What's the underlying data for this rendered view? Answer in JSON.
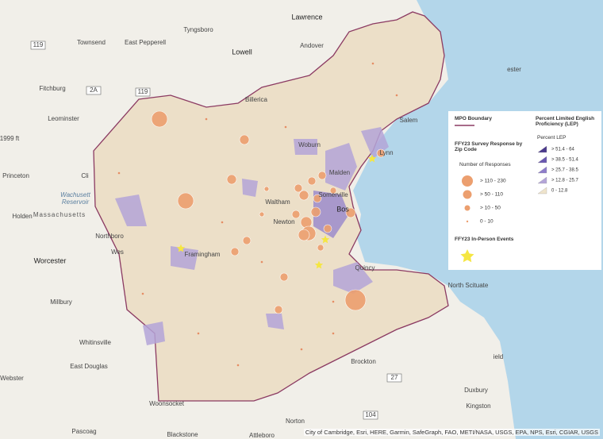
{
  "map": {
    "places": [
      "Lawrence",
      "Townsend",
      "East Pepperell",
      "Tyngsboro",
      "Lowell",
      "Andover",
      "Fitchburg",
      "Leominster",
      "Billerica",
      "Salem",
      "Princeton",
      "Cli",
      "Wachusett",
      "Reservoir",
      "Holden",
      "Massachusetts",
      "Northboro",
      "Worcester",
      "Wes",
      "Framingham",
      "Woburn",
      "Malden",
      "Somerville",
      "Waltham",
      "Newton",
      "Bos",
      "Quincy",
      "North Scituate",
      "Millbury",
      "Whitinsville",
      "East Douglas",
      "Brockton",
      "Webster",
      "Woonsocket",
      "Norton",
      "Duxbury",
      "Kingston",
      "Pascoag",
      "Blackstone",
      "Attleboro",
      "1999 ft",
      "Lynn",
      "ester",
      "ield"
    ],
    "shields": [
      "119",
      "2A",
      "119",
      "27",
      "104"
    ],
    "legend": {
      "boundary": "MPO Boundary",
      "survey_title": "FFY23 Survey Response by Zip Code",
      "responses_title": "Number of Responses",
      "responses": [
        "> 110 - 230",
        "> 50 - 110",
        "> 10 - 50",
        "0 - 10"
      ],
      "events": "FFY23 In-Person Events",
      "lep_title": "Percent Limited English Proficiency (LEP)",
      "lep_subtitle": "Percent LEP",
      "lep": [
        "> 51.4 - 64",
        "> 38.5 - 51.4",
        "> 25.7 - 38.5",
        "> 12.8 - 25.7",
        "0 - 12.8"
      ]
    },
    "attribution": "City of Cambridge, Esri, HERE, Garmin, SafeGraph, FAO, METI/NASA, USGS, EPA, NPS, Esri, CGIAR, USGS"
  }
}
